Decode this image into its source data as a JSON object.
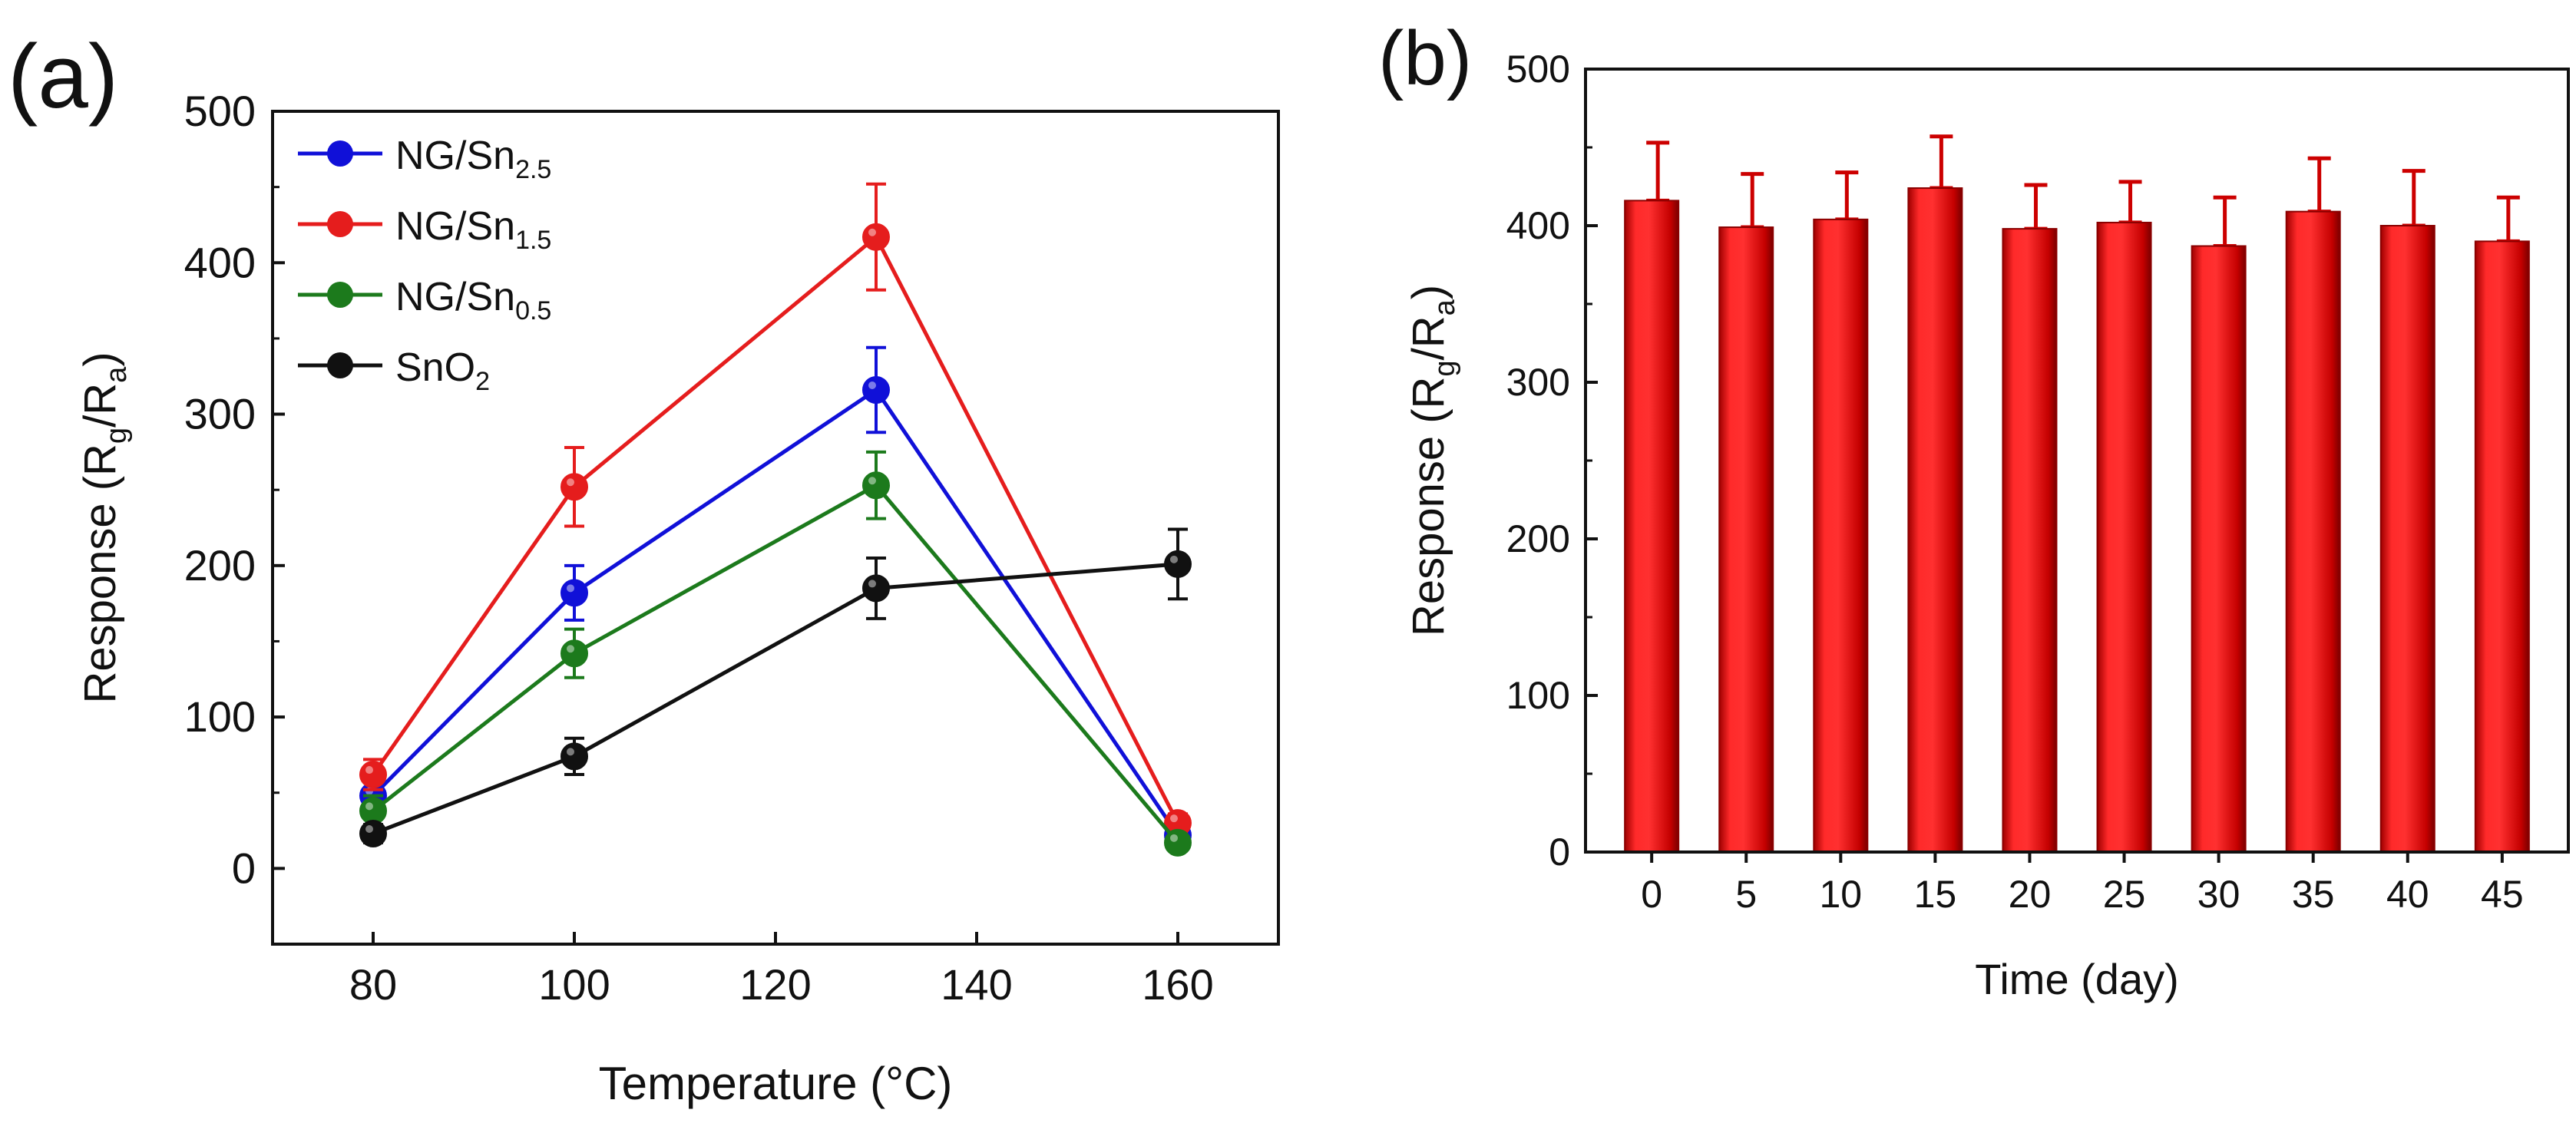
{
  "chart_data": [
    {
      "panel_label": "(a)",
      "type": "line",
      "xlabel": "Temperature (°C)",
      "ylabel_parts": [
        "Response (R",
        "g",
        "/R",
        "a",
        ")"
      ],
      "xlim": [
        70,
        170
      ],
      "ylim": [
        -50,
        500
      ],
      "x_ticks": [
        80,
        100,
        120,
        140,
        160
      ],
      "y_ticks": [
        0,
        100,
        200,
        300,
        400,
        500
      ],
      "grid": false,
      "legend_position": "top-left",
      "x": [
        80,
        100,
        130,
        160
      ],
      "series": [
        {
          "label_base": "NG/Sn",
          "label_sub": "2.5",
          "color": "#1010d8",
          "values": [
            48,
            182,
            316,
            22
          ],
          "errors": [
            10,
            18,
            28,
            6
          ]
        },
        {
          "label_base": "NG/Sn",
          "label_sub": "1.5",
          "color": "#e51d1d",
          "values": [
            62,
            252,
            417,
            30
          ],
          "errors": [
            10,
            26,
            35,
            6
          ]
        },
        {
          "label_base": "NG/Sn",
          "label_sub": "0.5",
          "color": "#1c7a1c",
          "values": [
            38,
            142,
            253,
            17
          ],
          "errors": [
            10,
            16,
            22,
            5
          ]
        },
        {
          "label_base": "SnO",
          "label_sub": "2",
          "color": "#111111",
          "values": [
            23,
            74,
            185,
            201
          ],
          "errors": [
            6,
            12,
            20,
            23
          ]
        }
      ]
    },
    {
      "panel_label": "(b)",
      "type": "bar",
      "xlabel": "Time (day)",
      "ylabel_parts": [
        "Response (R",
        "g",
        "/R",
        "a",
        ")"
      ],
      "ylim": [
        0,
        500
      ],
      "y_ticks": [
        0,
        100,
        200,
        300,
        400,
        500
      ],
      "grid": false,
      "color": "#ee1111",
      "categories": [
        "0",
        "5",
        "10",
        "15",
        "20",
        "25",
        "30",
        "35",
        "40",
        "45"
      ],
      "values": [
        416,
        399,
        404,
        424,
        398,
        402,
        387,
        409,
        400,
        390
      ],
      "errors": [
        37,
        34,
        30,
        33,
        28,
        26,
        31,
        34,
        35,
        28
      ]
    }
  ]
}
